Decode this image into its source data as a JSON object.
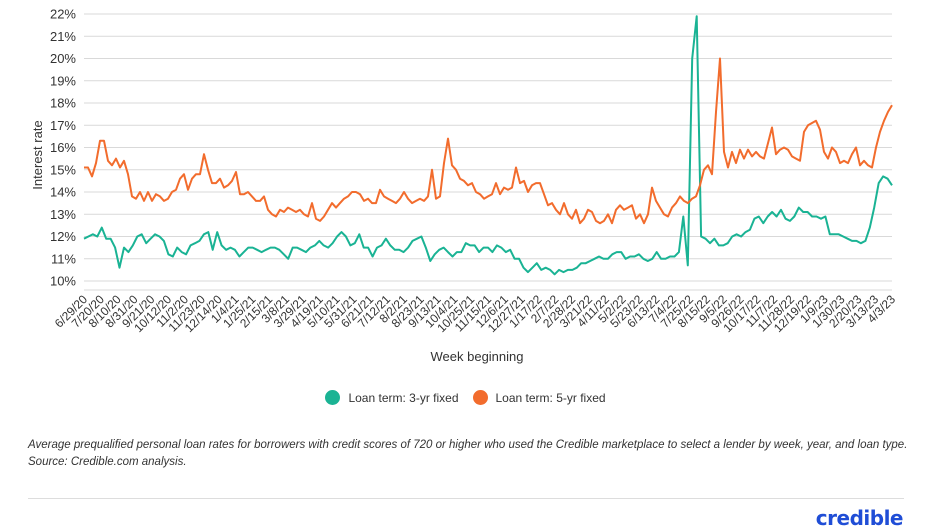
{
  "chart_data": {
    "type": "line",
    "title": "",
    "xlabel": "Week beginning",
    "ylabel": "Interest rate",
    "ylim": [
      10,
      22
    ],
    "y_ticks": [
      "22%",
      "21%",
      "20%",
      "19%",
      "18%",
      "17%",
      "16%",
      "15%",
      "14%",
      "13%",
      "12%",
      "11%",
      "10%"
    ],
    "x_ticks": [
      "6/29/20",
      "7/20/20",
      "8/10/20",
      "8/31/20",
      "9/21/20",
      "10/12/20",
      "11/2/20",
      "11/23/20",
      "12/14/20",
      "1/4/21",
      "1/25/21",
      "2/15/21",
      "3/8/21",
      "3/29/21",
      "4/19/21",
      "5/10/21",
      "5/31/21",
      "6/21/21",
      "7/12/21",
      "8/2/21",
      "8/23/21",
      "9/13/21",
      "10/4/21",
      "10/25/21",
      "11/15/21",
      "12/6/21",
      "12/27/21",
      "1/17/22",
      "2/7/22",
      "2/28/22",
      "3/21/22",
      "4/11/22",
      "5/2/22",
      "5/23/22",
      "6/13/22",
      "7/4/22",
      "7/25/22",
      "8/15/22",
      "9/5/22",
      "9/26/22",
      "10/17/22",
      "11/7/22",
      "11/28/22",
      "12/19/22",
      "1/9/23",
      "1/30/23",
      "2/20/23",
      "3/13/23",
      "4/3/23"
    ],
    "grid": true,
    "legend_position": "bottom",
    "series": [
      {
        "name": "Loan term: 3-yr fixed",
        "color": "#1ab394",
        "values": [
          11.9,
          12.0,
          12.1,
          12.0,
          12.4,
          11.9,
          11.9,
          11.5,
          10.6,
          11.5,
          11.3,
          11.6,
          12.0,
          12.1,
          11.7,
          11.9,
          12.1,
          12.0,
          11.8,
          11.2,
          11.1,
          11.5,
          11.3,
          11.2,
          11.6,
          11.7,
          11.8,
          12.1,
          12.2,
          11.4,
          12.2,
          11.6,
          11.4,
          11.5,
          11.4,
          11.1,
          11.3,
          11.5,
          11.5,
          11.4,
          11.3,
          11.4,
          11.5,
          11.5,
          11.4,
          11.2,
          11.0,
          11.5,
          11.5,
          11.4,
          11.3,
          11.5,
          11.6,
          11.8,
          11.6,
          11.5,
          11.7,
          12.0,
          12.2,
          12.0,
          11.6,
          11.7,
          12.1,
          11.5,
          11.5,
          11.1,
          11.5,
          11.6,
          11.9,
          11.6,
          11.4,
          11.4,
          11.3,
          11.5,
          11.8,
          11.9,
          12.0,
          11.5,
          10.9,
          11.2,
          11.4,
          11.5,
          11.3,
          11.1,
          11.3,
          11.3,
          11.7,
          11.6,
          11.6,
          11.3,
          11.5,
          11.5,
          11.3,
          11.6,
          11.5,
          11.3,
          11.4,
          11.0,
          11.0,
          10.6,
          10.4,
          10.6,
          10.8,
          10.5,
          10.6,
          10.5,
          10.3,
          10.5,
          10.4,
          10.5,
          10.5,
          10.6,
          10.8,
          10.8,
          10.9,
          11.0,
          11.1,
          11.0,
          11.0,
          11.2,
          11.3,
          11.3,
          11.0,
          11.1,
          11.1,
          11.2,
          11.0,
          10.9,
          11.0,
          11.3,
          11.0,
          11.0,
          11.1,
          11.1,
          11.3,
          12.9,
          10.7,
          20.0,
          21.9,
          12.0,
          11.9,
          11.7,
          11.9,
          11.6,
          11.6,
          11.7,
          12.0,
          12.1,
          12.0,
          12.2,
          12.3,
          12.8,
          12.9,
          12.6,
          12.9,
          13.1,
          12.9,
          13.2,
          12.8,
          12.7,
          12.9,
          13.3,
          13.1,
          13.1,
          12.9,
          12.9,
          12.8,
          12.9,
          12.1,
          12.1,
          12.1,
          12.0,
          11.9,
          11.8,
          11.8,
          11.7,
          11.8,
          12.4,
          13.3,
          14.4,
          14.7,
          14.6,
          14.3
        ]
      },
      {
        "name": "Loan term: 5-yr fixed",
        "color": "#f26c2d",
        "values": [
          15.1,
          15.1,
          14.7,
          15.3,
          16.3,
          16.3,
          15.4,
          15.2,
          15.5,
          15.1,
          15.4,
          14.8,
          13.8,
          13.7,
          14.0,
          13.6,
          14.0,
          13.6,
          13.9,
          13.8,
          13.6,
          13.7,
          14.0,
          14.1,
          14.6,
          14.8,
          14.1,
          14.6,
          14.8,
          14.8,
          15.7,
          15.0,
          14.4,
          14.4,
          14.6,
          14.2,
          14.3,
          14.5,
          14.9,
          13.9,
          13.9,
          14.0,
          13.8,
          13.6,
          13.6,
          13.8,
          13.2,
          13.0,
          12.9,
          13.2,
          13.1,
          13.3,
          13.2,
          13.1,
          13.2,
          13.0,
          12.9,
          13.5,
          12.8,
          12.7,
          12.9,
          13.2,
          13.5,
          13.3,
          13.5,
          13.7,
          13.8,
          14.0,
          14.0,
          13.9,
          13.6,
          13.7,
          13.5,
          13.5,
          14.1,
          13.8,
          13.7,
          13.6,
          13.5,
          13.7,
          14.0,
          13.7,
          13.5,
          13.6,
          13.7,
          13.6,
          13.8,
          15.0,
          13.7,
          13.8,
          15.3,
          16.4,
          15.2,
          15.0,
          14.6,
          14.5,
          14.3,
          14.4,
          14.0,
          13.9,
          13.7,
          13.8,
          13.9,
          14.4,
          13.9,
          14.2,
          14.1,
          14.2,
          15.1,
          14.4,
          14.5,
          14.0,
          14.3,
          14.4,
          14.4,
          13.9,
          13.4,
          13.5,
          13.2,
          13.0,
          13.5,
          13.0,
          12.8,
          13.2,
          12.6,
          12.8,
          13.2,
          13.1,
          12.7,
          12.6,
          12.7,
          13.0,
          12.6,
          13.2,
          13.4,
          13.2,
          13.3,
          13.4,
          12.8,
          13.0,
          12.6,
          13.0,
          14.2,
          13.6,
          13.3,
          13.0,
          12.9,
          13.3,
          13.5,
          13.8,
          13.6,
          13.5,
          13.7,
          13.8,
          14.3,
          15.0,
          15.2,
          14.8,
          17.6,
          20.0,
          15.8,
          15.1,
          15.8,
          15.3,
          15.9,
          15.5,
          15.9,
          15.6,
          15.8,
          15.6,
          15.5,
          16.2,
          16.9,
          15.7,
          15.9,
          16.0,
          15.9,
          15.6,
          15.5,
          15.4,
          16.7,
          17.0,
          17.1,
          17.2,
          16.8,
          15.8,
          15.5,
          16.0,
          15.8,
          15.3,
          15.4,
          15.3,
          15.7,
          16.0,
          15.2,
          15.4,
          15.2,
          15.1,
          16.0,
          16.7,
          17.2,
          17.6,
          17.9
        ]
      }
    ]
  },
  "legend": {
    "item_3yr": "Loan term: 3-yr fixed",
    "item_5yr": "Loan term: 5-yr fixed"
  },
  "caption": "Average prequalified personal loan rates for borrowers with credit scores of 720 or higher who used the Credible marketplace to select a lender by week, year, and loan type. Source: Credible.com analysis.",
  "logo_text": "credible"
}
